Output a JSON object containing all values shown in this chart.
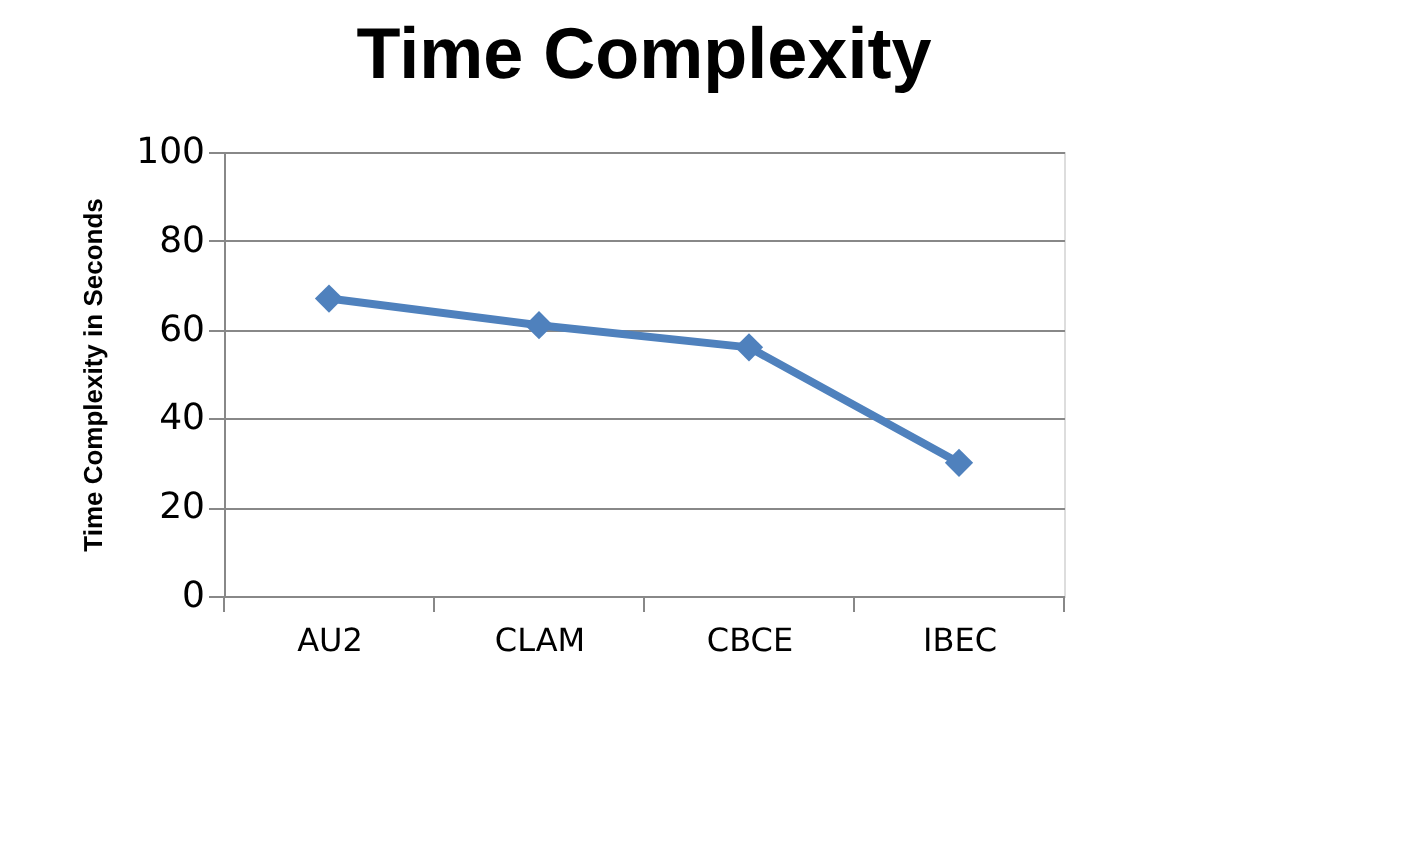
{
  "chart_data": {
    "type": "line",
    "title": "Time Complexity",
    "ylabel": "Time Complexity in Seconds",
    "categories": [
      "AU2",
      "CLAM",
      "CBCE",
      "IBEC"
    ],
    "series": [
      {
        "color": "#4f81bd",
        "values": [
          67,
          61,
          56,
          30
        ]
      }
    ],
    "ylim": [
      0,
      100
    ],
    "yticks": [
      0,
      20,
      40,
      60,
      80,
      100
    ],
    "grid": "y",
    "marker": "diamond",
    "line_style": "solid"
  }
}
